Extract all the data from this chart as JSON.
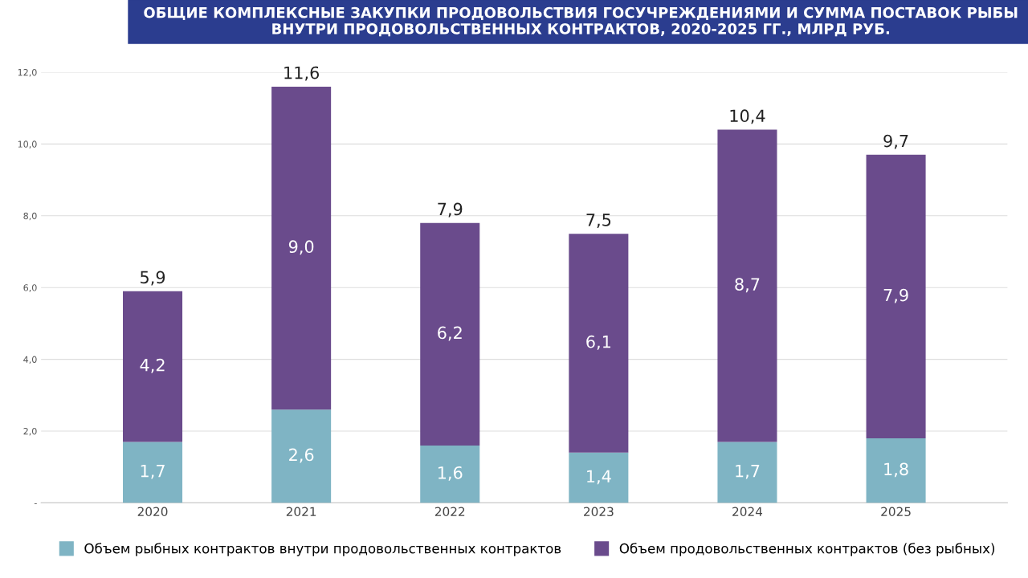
{
  "chart_data": {
    "type": "bar",
    "stacked": true,
    "title": "ОБЩИЕ КОМПЛЕКСНЫЕ ЗАКУПКИ ПРОДОВОЛЬСТВИЯ ГОСУЧРЕЖДЕНИЯМИ И СУММА ПОСТАВОК РЫБЫ\nВНУТРИ ПРОДОВОЛЬСТВЕННЫХ КОНТРАКТОВ, 2020-2025 ГГ., МЛРД РУБ.",
    "categories": [
      "2020",
      "2021",
      "2022",
      "2023",
      "2024",
      "2025"
    ],
    "series": [
      {
        "name": "Объем рыбных контрактов внутри продовольственных контрактов",
        "color": "#7fb4c4",
        "values": [
          1.7,
          2.6,
          1.6,
          1.4,
          1.7,
          1.8
        ],
        "value_labels": [
          "1,7",
          "2,6",
          "1,6",
          "1,4",
          "1,7",
          "1,8"
        ]
      },
      {
        "name": "Объем продовольственных контрактов (без рыбных)",
        "color": "#6a4b8c",
        "values": [
          4.2,
          9.0,
          6.2,
          6.1,
          8.7,
          7.9
        ],
        "value_labels": [
          "4,2",
          "9,0",
          "6,2",
          "6,1",
          "8,7",
          "7,9"
        ]
      }
    ],
    "totals": [
      "5,9",
      "11,6",
      "7,9",
      "7,5",
      "10,4",
      "9,7"
    ],
    "ylim": [
      0,
      12
    ],
    "yticks": [
      {
        "value": 0,
        "label": "-"
      },
      {
        "value": 2,
        "label": "2,0"
      },
      {
        "value": 4,
        "label": "4,0"
      },
      {
        "value": 6,
        "label": "6,0"
      },
      {
        "value": 8,
        "label": "8,0"
      },
      {
        "value": 10,
        "label": "10,0"
      },
      {
        "value": 12,
        "label": "12,0"
      }
    ],
    "grid": "y",
    "legend": "bottom"
  }
}
